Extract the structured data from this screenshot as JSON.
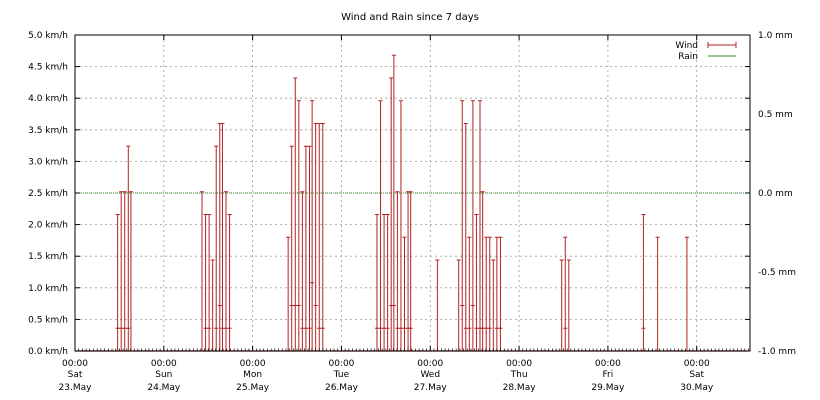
{
  "chart_data": {
    "type": "line",
    "title": "Wind and Rain since 7 days",
    "xlabel": "",
    "ylabel": "",
    "x_ticks": [
      {
        "time": "00:00",
        "day": "Sat",
        "date": "23.May"
      },
      {
        "time": "00:00",
        "day": "Sun",
        "date": "24.May"
      },
      {
        "time": "00:00",
        "day": "Mon",
        "date": "25.May"
      },
      {
        "time": "00:00",
        "day": "Tue",
        "date": "26.May"
      },
      {
        "time": "00:00",
        "day": "Wed",
        "date": "27.May"
      },
      {
        "time": "00:00",
        "day": "Thu",
        "date": "28.May"
      },
      {
        "time": "00:00",
        "day": "Fri",
        "date": "29.May"
      },
      {
        "time": "00:00",
        "day": "Sat",
        "date": "30.May"
      }
    ],
    "x_range_days": [
      0,
      7.6
    ],
    "y_left": {
      "unit": "km/h",
      "ylim": [
        0,
        5
      ],
      "ticks": [
        "0.0 km/h",
        "0.5 km/h",
        "1.0 km/h",
        "1.5 km/h",
        "2.0 km/h",
        "2.5 km/h",
        "3.0 km/h",
        "3.5 km/h",
        "4.0 km/h",
        "4.5 km/h",
        "5.0 km/h"
      ]
    },
    "y_right": {
      "unit": "mm",
      "ylim": [
        -1,
        1
      ],
      "ticks": [
        "-1.0 mm",
        "-0.5 mm",
        "0.0 mm",
        "0.5 mm",
        "1.0 mm"
      ]
    },
    "grid": true,
    "legend_position": "top-right",
    "series": [
      {
        "name": "Wind",
        "color": "#b22222",
        "axis": "left",
        "style": "range-bars",
        "points": [
          {
            "x": 0.48,
            "low": 0.36,
            "high": 2.16
          },
          {
            "x": 0.52,
            "low": 0.36,
            "high": 2.52
          },
          {
            "x": 0.56,
            "low": 0.36,
            "high": 2.52
          },
          {
            "x": 0.6,
            "low": 0.36,
            "high": 3.24
          },
          {
            "x": 0.63,
            "low": 0,
            "high": 2.52
          },
          {
            "x": 1.43,
            "low": 0,
            "high": 2.52
          },
          {
            "x": 1.47,
            "low": 0.36,
            "high": 2.16
          },
          {
            "x": 1.51,
            "low": 0.36,
            "high": 2.16
          },
          {
            "x": 1.55,
            "low": 0,
            "high": 1.44
          },
          {
            "x": 1.59,
            "low": 0.36,
            "high": 3.24
          },
          {
            "x": 1.63,
            "low": 0.72,
            "high": 3.6
          },
          {
            "x": 1.66,
            "low": 0.36,
            "high": 3.6
          },
          {
            "x": 1.7,
            "low": 0.36,
            "high": 2.52
          },
          {
            "x": 1.74,
            "low": 0.36,
            "high": 2.16
          },
          {
            "x": 2.4,
            "low": 0,
            "high": 1.8
          },
          {
            "x": 2.44,
            "low": 0.72,
            "high": 3.24
          },
          {
            "x": 2.48,
            "low": 0.72,
            "high": 4.32
          },
          {
            "x": 2.52,
            "low": 0.72,
            "high": 3.96
          },
          {
            "x": 2.56,
            "low": 0.36,
            "high": 2.52
          },
          {
            "x": 2.6,
            "low": 0.36,
            "high": 3.24
          },
          {
            "x": 2.64,
            "low": 0.36,
            "high": 3.24
          },
          {
            "x": 2.67,
            "low": 1.08,
            "high": 3.96
          },
          {
            "x": 2.71,
            "low": 0.72,
            "high": 3.6
          },
          {
            "x": 2.75,
            "low": 0.36,
            "high": 3.6
          },
          {
            "x": 2.79,
            "low": 0.36,
            "high": 3.6
          },
          {
            "x": 3.4,
            "low": 0.36,
            "high": 2.16
          },
          {
            "x": 3.44,
            "low": 0.36,
            "high": 3.96
          },
          {
            "x": 3.48,
            "low": 0.36,
            "high": 2.16
          },
          {
            "x": 3.52,
            "low": 0.36,
            "high": 2.16
          },
          {
            "x": 3.56,
            "low": 0.72,
            "high": 4.32
          },
          {
            "x": 3.59,
            "low": 0.72,
            "high": 4.68
          },
          {
            "x": 3.63,
            "low": 0.36,
            "high": 2.52
          },
          {
            "x": 3.67,
            "low": 0.36,
            "high": 3.96
          },
          {
            "x": 3.71,
            "low": 0.36,
            "high": 1.8
          },
          {
            "x": 3.75,
            "low": 0.36,
            "high": 2.52
          },
          {
            "x": 3.78,
            "low": 0.36,
            "high": 2.52
          },
          {
            "x": 4.08,
            "low": 0,
            "high": 1.44
          },
          {
            "x": 4.32,
            "low": 0,
            "high": 1.44
          },
          {
            "x": 4.36,
            "low": 0.72,
            "high": 3.96
          },
          {
            "x": 4.4,
            "low": 0.36,
            "high": 3.6
          },
          {
            "x": 4.44,
            "low": 0.36,
            "high": 1.8
          },
          {
            "x": 4.48,
            "low": 0.72,
            "high": 3.96
          },
          {
            "x": 4.52,
            "low": 0.36,
            "high": 2.16
          },
          {
            "x": 4.56,
            "low": 0.36,
            "high": 3.96
          },
          {
            "x": 4.59,
            "low": 0.36,
            "high": 2.52
          },
          {
            "x": 4.63,
            "low": 0.36,
            "high": 1.8
          },
          {
            "x": 4.67,
            "low": 0.36,
            "high": 1.8
          },
          {
            "x": 4.71,
            "low": 0,
            "high": 1.44
          },
          {
            "x": 4.75,
            "low": 0.36,
            "high": 1.8
          },
          {
            "x": 4.79,
            "low": 0.36,
            "high": 1.8
          },
          {
            "x": 5.48,
            "low": 0,
            "high": 1.44
          },
          {
            "x": 5.52,
            "low": 0.36,
            "high": 1.8
          },
          {
            "x": 5.56,
            "low": 0,
            "high": 1.44
          },
          {
            "x": 6.4,
            "low": 0.36,
            "high": 2.16
          },
          {
            "x": 6.56,
            "low": 0,
            "high": 1.8
          },
          {
            "x": 6.89,
            "low": 0,
            "high": 1.8
          }
        ]
      },
      {
        "name": "Rain",
        "color": "#2e8b2e",
        "axis": "right",
        "style": "line",
        "values": [
          [
            0,
            0
          ],
          [
            7.6,
            0
          ]
        ]
      }
    ]
  }
}
